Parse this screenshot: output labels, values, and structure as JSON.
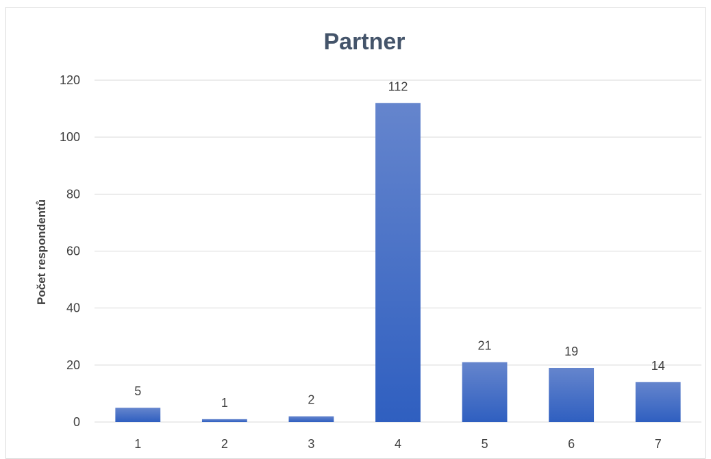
{
  "chart_data": {
    "type": "bar",
    "title": "Partner",
    "xlabel": "",
    "ylabel": "Počet respondentů",
    "categories": [
      "1",
      "2",
      "3",
      "4",
      "5",
      "6",
      "7"
    ],
    "values": [
      5,
      1,
      2,
      112,
      21,
      19,
      14
    ],
    "data_labels": [
      "5",
      "1",
      "2",
      "112",
      "21",
      "19",
      "14"
    ],
    "y_ticks": [
      "0",
      "20",
      "40",
      "60",
      "80",
      "100",
      "120"
    ],
    "ylim": [
      0,
      120
    ],
    "grid": true,
    "legend": "none",
    "colors": {
      "bar_top": "#6585cd",
      "bar_bottom": "#2f5fc0",
      "grid": "#d9d9d9",
      "title": "#44546a",
      "text": "#404040"
    }
  }
}
